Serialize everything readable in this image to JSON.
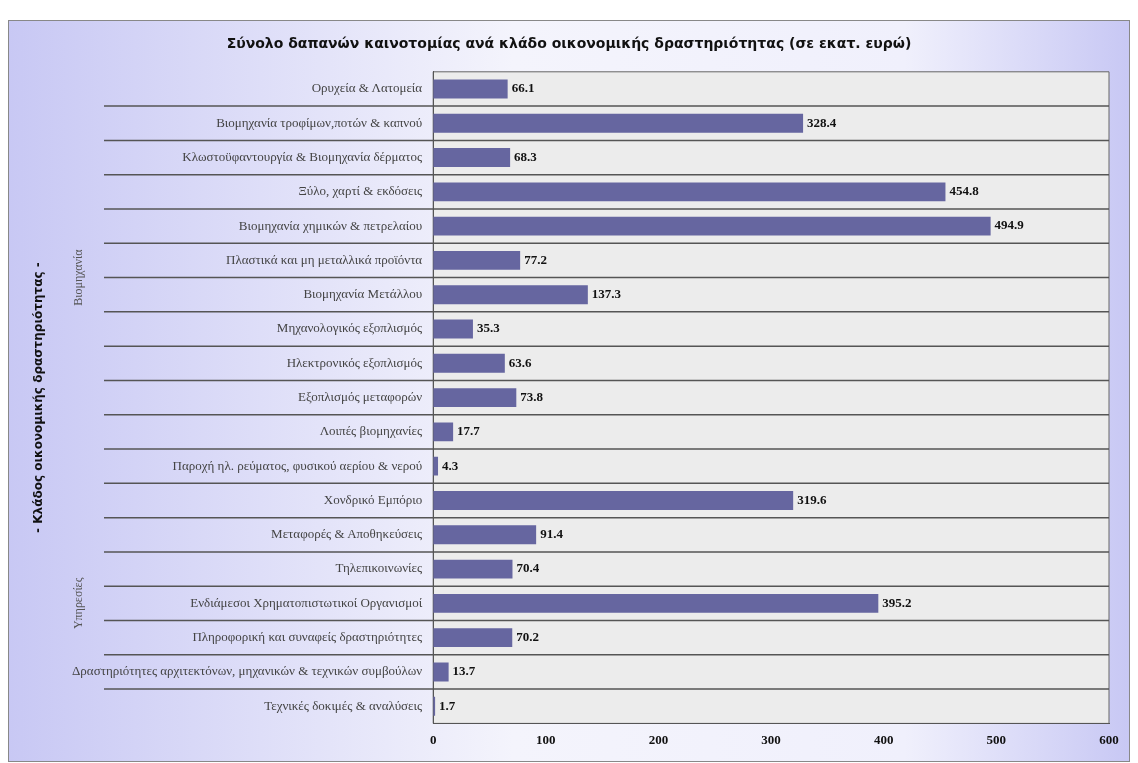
{
  "chart_data": {
    "type": "bar",
    "orientation": "horizontal",
    "title": "Σύνολο δαπανών καινοτομίας ανά κλάδο οικονομικής δραστηριότητας (σε εκατ. ευρώ)",
    "ylabel": "- Κλάδος οικονομικής δραστηριότητας -",
    "annotations": [
      "Βιομηχανία",
      "Υπηρεσίες"
    ],
    "categories": [
      "Ορυχεία & Λατομεία",
      "Βιομηχανία τροφίμων,ποτών & καπνού",
      "Κλωστοϋφαντουργία & Βιομηχανία δέρματος",
      "Ξύλο, χαρτί & εκδόσεις",
      "Βιομηχανία χημικών & πετρελαίου",
      "Πλαστικά και μη μεταλλικά προϊόντα",
      "Βιομηχανία Μετάλλου",
      "Μηχανολογικός εξοπλισμός",
      "Ηλεκτρονικός εξοπλισμός",
      "Εξοπλισμός μεταφορών",
      "Λοιπές βιομηχανίες",
      "Παροχή ηλ. ρεύματος, φυσικού αερίου & νερού",
      "Χονδρικό Εμπόριο",
      "Μεταφορές & Αποθηκεύσεις",
      "Τηλεπικοινωνίες",
      "Ενδιάμεσοι Χρηματοπιστωτικοί Οργανισμοί",
      "Πληροφορική και συναφείς δραστηριότητες",
      "Δραστηριότητες αρχιτεκτόνων, μηχανικών & τεχνικών συμβούλων",
      "Τεχνικές δοκιμές & αναλύσεις"
    ],
    "values": [
      66.1,
      328.4,
      68.3,
      454.8,
      494.9,
      77.2,
      137.3,
      35.3,
      63.6,
      73.8,
      17.7,
      4.3,
      319.6,
      91.4,
      70.4,
      395.2,
      70.2,
      13.7,
      1.7
    ],
    "color": "#6666a0",
    "xlim": [
      0,
      600
    ],
    "xticks": [
      0,
      100,
      200,
      300,
      400,
      500,
      600
    ],
    "grid": "y",
    "data_labels": true,
    "legend": false
  }
}
